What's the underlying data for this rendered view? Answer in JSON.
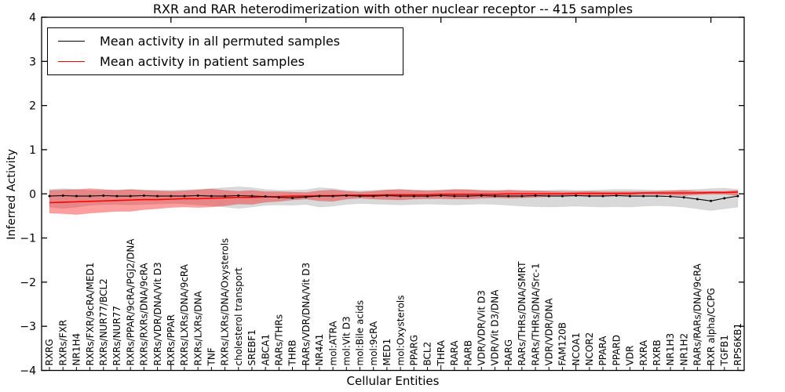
{
  "chart_data": {
    "type": "line",
    "title": "RXR and RAR heterodimerization with other nuclear receptor -- 415 samples",
    "xlabel": "Cellular Entities",
    "ylabel": "Inferred Activity",
    "ylim": [
      -4,
      4
    ],
    "yticks": [
      4,
      3,
      2,
      1,
      0,
      -1,
      -2,
      -3,
      -4
    ],
    "grid": false,
    "legend_position": "upper left",
    "categories": [
      "RXRG",
      "RXRs/FXR",
      "NR1H4",
      "RXRs/FXR/9cRA/MED1",
      "RXRs/NUR77/BCL2",
      "RXRs/NUR77",
      "RXRs/PPAR/9cRA/PGJ2/DNA",
      "RXRs/RXRs/DNA/9cRA",
      "RXRs/VDR/DNA/Vit D3",
      "RXRs/PPAR",
      "RXRs/LXRs/DNA/9cRA",
      "RXRs/LXRs/DNA",
      "TNF",
      "RXRs/LXRs/DNA/Oxysterols",
      "cholesterol transport",
      "SREBF1",
      "ABCA1",
      "RARs/THRs",
      "THRB",
      "RARs/VDR/DNA/Vit D3",
      "NR4A1",
      "mol:ATRA",
      "mol:Vit D3",
      "mol:Bile acids",
      "mol:9cRA",
      "MED1",
      "mol:Oxysterols",
      "PPARG",
      "BCL2",
      "THRA",
      "RARA",
      "RARB",
      "VDR/VDR/Vit D3",
      "VDR/Vit D3/DNA",
      "RARG",
      "RARs/THRs/DNA/SMRT",
      "RARs/THRs/DNA/Src-1",
      "VDR/VDR/DNA",
      "FAM120B",
      "NCOA1",
      "NCOR2",
      "PPARA",
      "PPARD",
      "VDR",
      "RXRA",
      "RXRB",
      "NR1H3",
      "NR1H2",
      "RARs/RARs/DNA/9cRA",
      "RXR alpha/CCPG",
      "TGFB1",
      "RPS6KB1"
    ],
    "series": [
      {
        "name": "Mean activity in all permuted samples",
        "color": "#000000",
        "band_color": "rgba(0,0,0,0.15)",
        "markers": true,
        "values": [
          -0.05,
          -0.04,
          -0.05,
          -0.05,
          -0.04,
          -0.05,
          -0.05,
          -0.04,
          -0.05,
          -0.05,
          -0.05,
          -0.04,
          -0.05,
          -0.05,
          -0.04,
          -0.05,
          -0.06,
          -0.08,
          -0.09,
          -0.07,
          -0.05,
          -0.05,
          -0.04,
          -0.05,
          -0.05,
          -0.04,
          -0.05,
          -0.05,
          -0.05,
          -0.04,
          -0.05,
          -0.05,
          -0.04,
          -0.05,
          -0.05,
          -0.05,
          -0.04,
          -0.05,
          -0.05,
          -0.04,
          -0.05,
          -0.05,
          -0.04,
          -0.05,
          -0.05,
          -0.05,
          -0.06,
          -0.08,
          -0.12,
          -0.16,
          -0.1,
          -0.05
        ],
        "band_upper": [
          0.1,
          0.12,
          0.1,
          0.08,
          0.08,
          0.09,
          0.1,
          0.09,
          0.08,
          0.08,
          0.09,
          0.1,
          0.12,
          0.14,
          0.16,
          0.14,
          0.1,
          0.08,
          0.08,
          0.09,
          0.14,
          0.12,
          0.08,
          0.07,
          0.08,
          0.09,
          0.1,
          0.09,
          0.08,
          0.09,
          0.1,
          0.09,
          0.08,
          0.08,
          0.07,
          0.06,
          0.07,
          0.08,
          0.09,
          0.08,
          0.08,
          0.09,
          0.1,
          0.1,
          0.09,
          0.08,
          0.08,
          0.09,
          0.1,
          0.12,
          0.13,
          0.1
        ],
        "band_lower": [
          -0.3,
          -0.33,
          -0.3,
          -0.26,
          -0.24,
          -0.24,
          -0.25,
          -0.24,
          -0.23,
          -0.22,
          -0.23,
          -0.25,
          -0.27,
          -0.3,
          -0.33,
          -0.3,
          -0.26,
          -0.25,
          -0.26,
          -0.24,
          -0.3,
          -0.28,
          -0.24,
          -0.22,
          -0.23,
          -0.24,
          -0.25,
          -0.24,
          -0.23,
          -0.24,
          -0.25,
          -0.24,
          -0.23,
          -0.24,
          -0.26,
          -0.28,
          -0.29,
          -0.3,
          -0.29,
          -0.28,
          -0.29,
          -0.3,
          -0.29,
          -0.3,
          -0.28,
          -0.27,
          -0.28,
          -0.3,
          -0.34,
          -0.38,
          -0.34,
          -0.3
        ]
      },
      {
        "name": "Mean activity in patient samples",
        "color": "#ff0000",
        "band_color": "rgba(255,0,0,0.38)",
        "markers": false,
        "values": [
          -0.2,
          -0.19,
          -0.18,
          -0.17,
          -0.16,
          -0.15,
          -0.14,
          -0.13,
          -0.13,
          -0.12,
          -0.11,
          -0.11,
          -0.1,
          -0.09,
          -0.08,
          -0.08,
          -0.07,
          -0.06,
          -0.05,
          -0.05,
          -0.04,
          -0.04,
          -0.03,
          -0.03,
          -0.03,
          -0.02,
          -0.02,
          -0.02,
          -0.02,
          -0.01,
          -0.01,
          -0.01,
          -0.01,
          -0.01,
          0.0,
          0.0,
          0.0,
          0.0,
          0.0,
          0.01,
          0.01,
          0.01,
          0.01,
          0.01,
          0.02,
          0.02,
          0.02,
          0.02,
          0.02,
          0.03,
          0.03,
          0.04
        ],
        "band_upper": [
          0.08,
          0.09,
          0.1,
          0.12,
          0.1,
          0.08,
          0.1,
          0.08,
          0.07,
          0.06,
          0.07,
          0.09,
          0.11,
          0.08,
          0.06,
          0.08,
          0.05,
          0.05,
          0.04,
          0.03,
          0.07,
          0.09,
          0.06,
          0.04,
          0.06,
          0.09,
          0.1,
          0.08,
          0.07,
          0.08,
          0.1,
          0.1,
          0.08,
          0.07,
          0.09,
          0.08,
          0.07,
          0.06,
          0.05,
          0.05,
          0.06,
          0.05,
          0.05,
          0.05,
          0.05,
          0.06,
          0.07,
          0.08,
          0.06,
          0.06,
          0.06,
          0.08
        ],
        "band_lower": [
          -0.44,
          -0.45,
          -0.47,
          -0.44,
          -0.42,
          -0.4,
          -0.4,
          -0.36,
          -0.34,
          -0.31,
          -0.3,
          -0.31,
          -0.3,
          -0.27,
          -0.23,
          -0.24,
          -0.19,
          -0.17,
          -0.14,
          -0.12,
          -0.16,
          -0.17,
          -0.12,
          -0.1,
          -0.12,
          -0.13,
          -0.14,
          -0.12,
          -0.11,
          -0.11,
          -0.12,
          -0.12,
          -0.1,
          -0.09,
          -0.1,
          -0.09,
          -0.08,
          -0.06,
          -0.05,
          -0.04,
          -0.04,
          -0.04,
          -0.03,
          -0.03,
          -0.02,
          -0.02,
          -0.03,
          -0.04,
          -0.02,
          -0.01,
          -0.01,
          -0.04
        ]
      }
    ]
  },
  "legend": {
    "items": [
      {
        "label": "Mean activity in all permuted samples",
        "color": "#000000"
      },
      {
        "label": "Mean activity in patient samples",
        "color": "#ff0000"
      }
    ]
  },
  "colors": {
    "permuted_line": "#000000",
    "patient_line": "#ff0000",
    "permuted_band": "#d9d9d9",
    "patient_band": "#f5a3a3",
    "axis": "#000000",
    "background": "#ffffff"
  }
}
